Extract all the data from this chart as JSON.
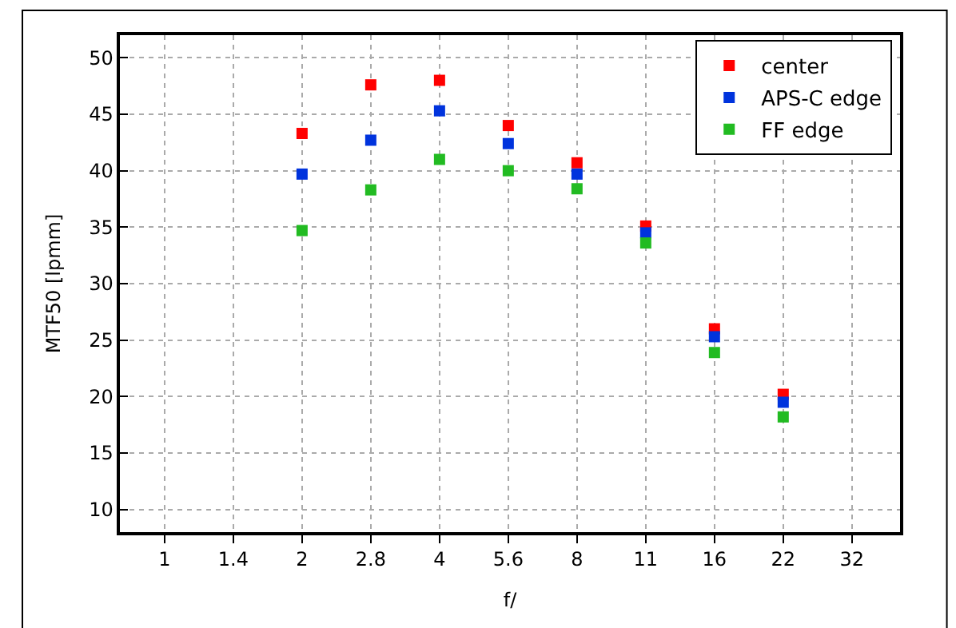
{
  "chart_data": {
    "type": "scatter",
    "xlabel": "f/",
    "ylabel": "MTF50 [lpmm]",
    "categories": [
      "1",
      "1.4",
      "2",
      "2.8",
      "4",
      "5.6",
      "8",
      "11",
      "16",
      "22",
      "32"
    ],
    "series": [
      {
        "name": "center",
        "color": "#ff0000",
        "values": [
          null,
          null,
          43.3,
          47.6,
          48.0,
          44.0,
          40.7,
          35.1,
          26.0,
          20.2,
          null
        ]
      },
      {
        "name": "APS-C edge",
        "color": "#0033dd",
        "values": [
          null,
          null,
          39.7,
          42.7,
          45.3,
          42.4,
          39.7,
          34.5,
          25.3,
          19.5,
          null
        ]
      },
      {
        "name": "FF edge",
        "color": "#22bb22",
        "values": [
          null,
          null,
          34.7,
          38.3,
          41.0,
          40.0,
          38.4,
          33.6,
          23.9,
          18.2,
          null
        ]
      }
    ],
    "ylim": [
      8,
      52
    ],
    "yticks": [
      10,
      15,
      20,
      25,
      30,
      35,
      40,
      45,
      50
    ],
    "grid": true,
    "legend": "top right",
    "marker": "square"
  }
}
